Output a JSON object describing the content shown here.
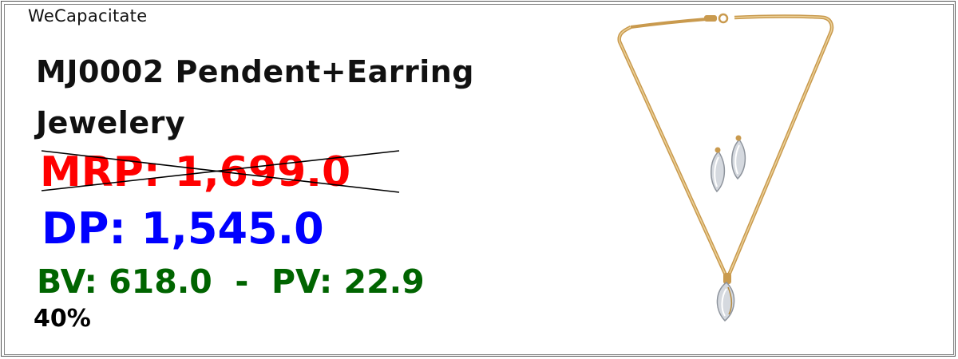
{
  "brand": "WeCapacitate",
  "product": {
    "title": "MJ0002 Pendent+Earring Jewelery",
    "mrp": "MRP: 1,699.0",
    "dp": "DP: 1,545.0",
    "bv_pv": "BV: 618.0  -  PV: 22.9",
    "discount": "40%",
    "image_icon": "necklace-earring-icon"
  },
  "colors": {
    "mrp": "#ff0000",
    "dp": "#0000ff",
    "bv_pv": "#006400",
    "chain": "#d4a85a",
    "gem": "#c9ced6"
  }
}
